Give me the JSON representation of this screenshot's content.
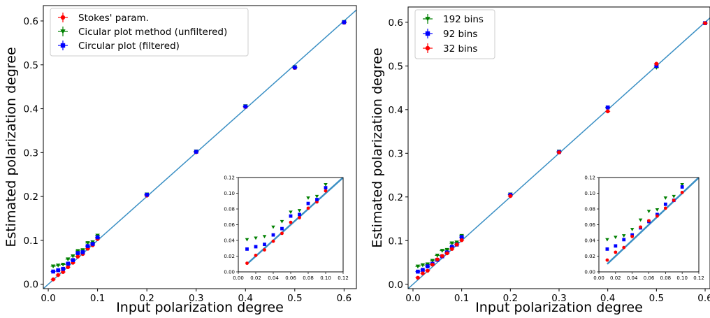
{
  "chart_data": [
    {
      "type": "scatter",
      "xlabel": "Input polarization degree",
      "ylabel": "Estimated polarization degree",
      "xlim": [
        -0.01,
        0.625
      ],
      "ylim": [
        -0.01,
        0.635
      ],
      "xticks": [
        "0.0",
        "0.1",
        "0.2",
        "0.3",
        "0.4",
        "0.5",
        "0.6"
      ],
      "yticks": [
        "0.0",
        "0.1",
        "0.2",
        "0.3",
        "0.4",
        "0.5",
        "0.6"
      ],
      "legend_position": "top-left",
      "reference_line": "y = x",
      "series": [
        {
          "name": "Stokes' param.",
          "color": "#ff0000",
          "marker": "circle",
          "x": [
            0.01,
            0.02,
            0.03,
            0.04,
            0.05,
            0.06,
            0.07,
            0.08,
            0.09,
            0.1,
            0.2,
            0.3,
            0.4,
            0.5,
            0.6
          ],
          "y": [
            0.011,
            0.021,
            0.028,
            0.039,
            0.049,
            0.063,
            0.069,
            0.081,
            0.089,
            0.103,
            0.202,
            0.301,
            0.404,
            0.493,
            0.596
          ]
        },
        {
          "name": "Cicular plot method (unfiltered)",
          "color": "#008000",
          "marker": "triangle-down",
          "x": [
            0.01,
            0.02,
            0.03,
            0.04,
            0.05,
            0.06,
            0.07,
            0.08,
            0.09,
            0.1,
            0.2,
            0.3,
            0.4,
            0.5,
            0.6
          ],
          "y": [
            0.041,
            0.043,
            0.045,
            0.057,
            0.064,
            0.076,
            0.078,
            0.094,
            0.096,
            0.111,
            0.205,
            0.303,
            0.406,
            0.495,
            0.598
          ]
        },
        {
          "name": "Circular plot (filtered)",
          "color": "#0000ff",
          "marker": "square",
          "x": [
            0.01,
            0.02,
            0.03,
            0.04,
            0.05,
            0.06,
            0.07,
            0.08,
            0.09,
            0.1,
            0.2,
            0.3,
            0.4,
            0.5,
            0.6
          ],
          "y": [
            0.029,
            0.032,
            0.035,
            0.047,
            0.055,
            0.071,
            0.073,
            0.087,
            0.092,
            0.107,
            0.204,
            0.302,
            0.405,
            0.494,
            0.597
          ]
        }
      ],
      "inset": {
        "xlim": [
          0.0,
          0.12
        ],
        "ylim": [
          0.0,
          0.12
        ],
        "xticks": [
          "0.00",
          "0.02",
          "0.04",
          "0.06",
          "0.08",
          "0.10",
          "0.12"
        ],
        "yticks": [
          "0.00",
          "0.02",
          "0.04",
          "0.06",
          "0.08",
          "0.10",
          "0.12"
        ]
      }
    },
    {
      "type": "scatter",
      "xlabel": "Input polarization degree",
      "ylabel": "Estimated polarization degree",
      "xlim": [
        -0.01,
        0.61
      ],
      "ylim": [
        -0.01,
        0.635
      ],
      "xticks": [
        "0.0",
        "0.1",
        "0.2",
        "0.3",
        "0.4",
        "0.5",
        "0.6"
      ],
      "yticks": [
        "0.0",
        "0.1",
        "0.2",
        "0.3",
        "0.4",
        "0.5",
        "0.6"
      ],
      "legend_position": "top-left",
      "reference_line": "y = x",
      "series": [
        {
          "name": "192 bins",
          "color": "#008000",
          "marker": "triangle-down",
          "x": [
            0.01,
            0.02,
            0.03,
            0.04,
            0.05,
            0.06,
            0.07,
            0.08,
            0.09,
            0.1,
            0.2,
            0.3,
            0.4,
            0.5,
            0.6
          ],
          "y": [
            0.041,
            0.044,
            0.046,
            0.054,
            0.066,
            0.077,
            0.079,
            0.094,
            0.096,
            0.111,
            0.206,
            0.304,
            0.404,
            0.496,
            0.598
          ]
        },
        {
          "name": "92 bins",
          "color": "#0000ff",
          "marker": "square",
          "x": [
            0.01,
            0.02,
            0.03,
            0.04,
            0.05,
            0.06,
            0.07,
            0.08,
            0.09,
            0.1,
            0.2,
            0.3,
            0.4,
            0.5,
            0.6
          ],
          "y": [
            0.029,
            0.033,
            0.041,
            0.047,
            0.056,
            0.064,
            0.073,
            0.086,
            0.091,
            0.108,
            0.205,
            0.303,
            0.405,
            0.5,
            0.598
          ]
        },
        {
          "name": "32 bins",
          "color": "#ff0000",
          "marker": "circle",
          "x": [
            0.01,
            0.02,
            0.03,
            0.04,
            0.05,
            0.06,
            0.07,
            0.08,
            0.09,
            0.1,
            0.2,
            0.3,
            0.4,
            0.5,
            0.6
          ],
          "y": [
            0.015,
            0.025,
            0.031,
            0.045,
            0.057,
            0.065,
            0.071,
            0.081,
            0.091,
            0.101,
            0.202,
            0.302,
            0.396,
            0.505,
            0.598
          ]
        }
      ],
      "inset": {
        "xlim": [
          0.0,
          0.12
        ],
        "ylim": [
          0.0,
          0.12
        ],
        "xticks": [
          "0.00",
          "0.02",
          "0.04",
          "0.06",
          "0.08",
          "0.10",
          "0.12"
        ],
        "yticks": [
          "0.00",
          "0.02",
          "0.04",
          "0.06",
          "0.08",
          "0.10",
          "0.12"
        ]
      }
    }
  ],
  "colors": {
    "reference_line": "#3a8fc4",
    "axes": "#000000",
    "background": "#ffffff"
  }
}
